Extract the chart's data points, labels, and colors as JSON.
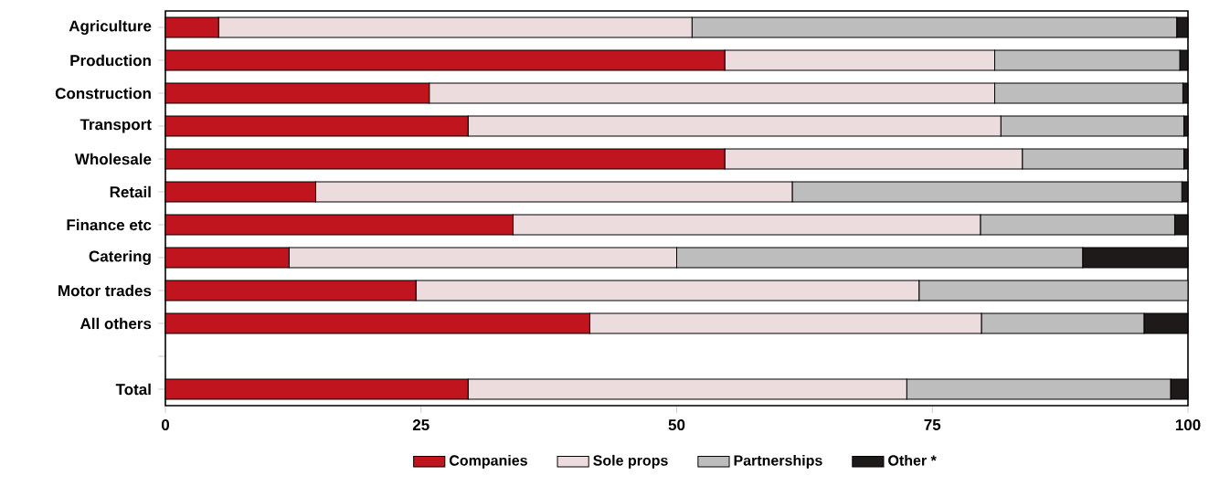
{
  "chart_data": {
    "type": "bar",
    "orientation": "horizontal",
    "stacked": true,
    "legend": "bottom",
    "grid": false,
    "categories": [
      "Agriculture",
      "Production",
      "Construction",
      "Transport",
      "Wholesale",
      "Retail",
      "Finance etc",
      "Catering",
      "Motor trades",
      "All others",
      null,
      "Total"
    ],
    "xlim": [
      0,
      100
    ],
    "xticks": [
      0,
      25,
      50,
      75,
      100
    ],
    "series": [
      {
        "name": "Companies",
        "color": "#c0141f",
        "values": [
          5.2,
          54.7,
          25.8,
          29.6,
          54.7,
          14.7,
          34.0,
          12.1,
          24.5,
          41.5,
          null,
          29.6
        ]
      },
      {
        "name": "Sole props",
        "color": "#eddcdd",
        "values": [
          46.3,
          26.4,
          55.3,
          52.1,
          29.1,
          46.6,
          45.7,
          37.9,
          49.2,
          38.3,
          null,
          42.9
        ]
      },
      {
        "name": "Partnerships",
        "color": "#bdbdbd",
        "values": [
          47.4,
          18.1,
          18.4,
          17.9,
          15.8,
          38.1,
          19.0,
          39.7,
          26.3,
          15.9,
          null,
          25.8
        ]
      },
      {
        "name": "Other *",
        "color": "#1e1a1a",
        "values": [
          1.1,
          0.8,
          0.5,
          0.4,
          0.4,
          0.6,
          1.3,
          10.3,
          0.0,
          4.3,
          null,
          1.7
        ]
      }
    ]
  }
}
